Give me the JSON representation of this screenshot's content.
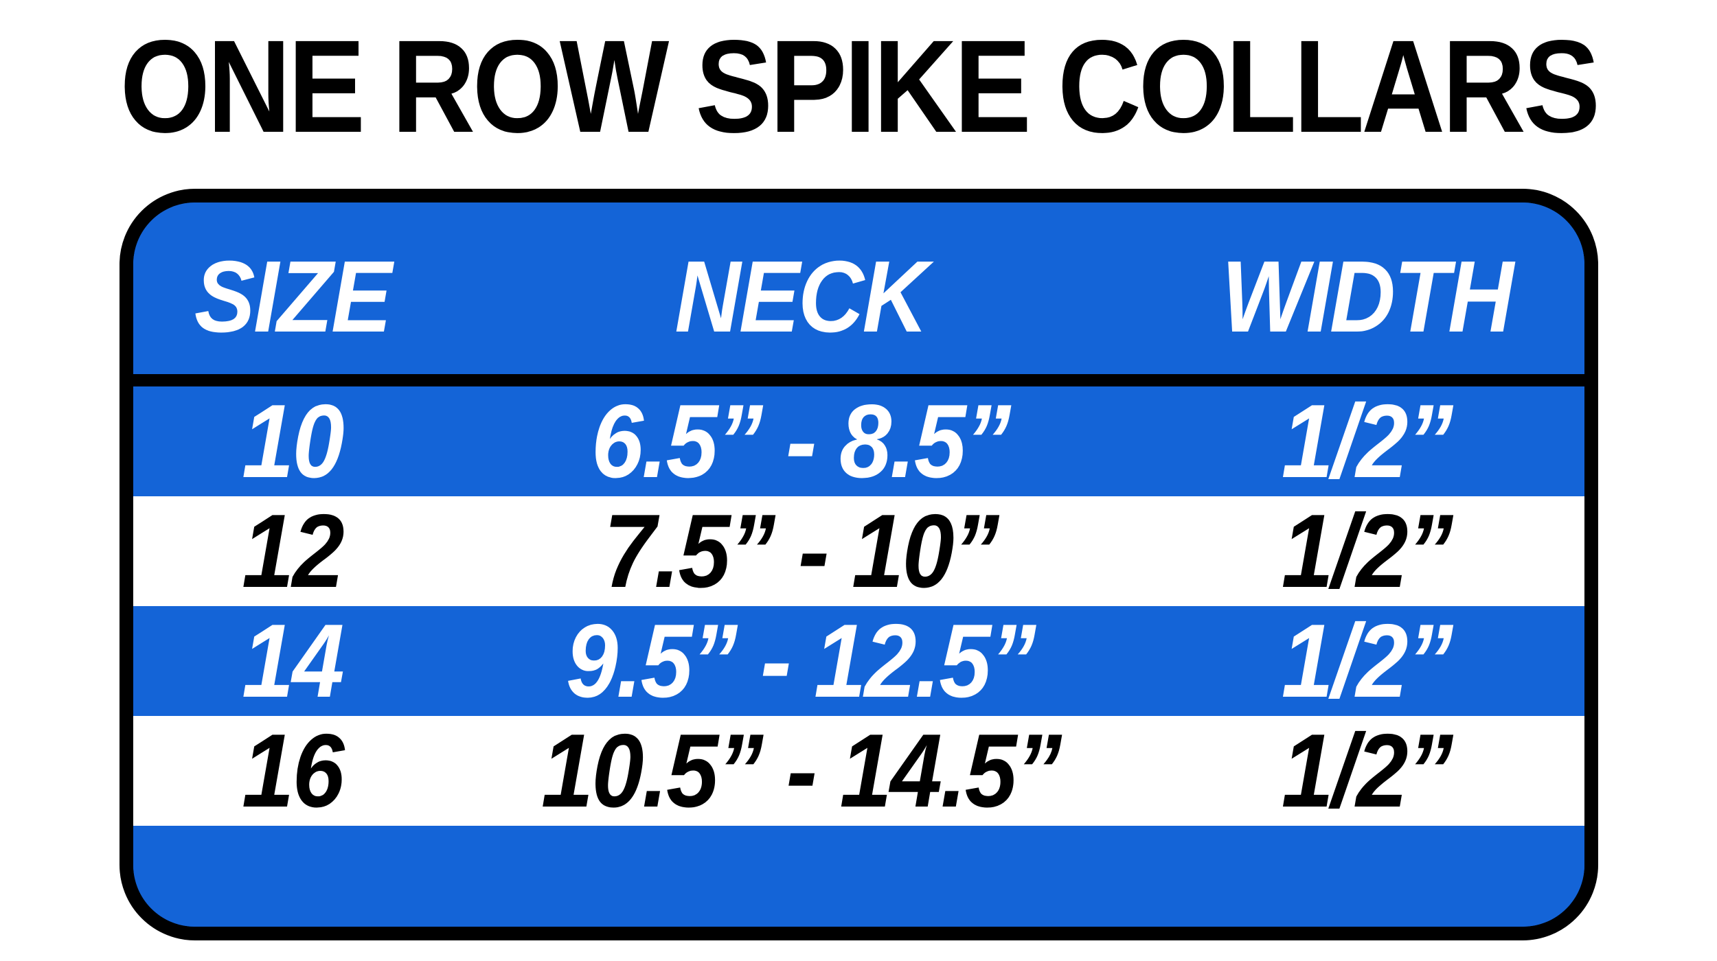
{
  "title": "ONE ROW SPIKE COLLARS",
  "colors": {
    "blue": "#1464d7",
    "ink": "#000000",
    "paper": "#ffffff",
    "text_on_blue": "#ffffff"
  },
  "table": {
    "columns": [
      "SIZE",
      "NECK",
      "WIDTH"
    ],
    "rows": [
      {
        "size": "10",
        "neck": "6.5” - 8.5”",
        "width": "1/2”"
      },
      {
        "size": "12",
        "neck": "7.5” - 10”",
        "width": "1/2”"
      },
      {
        "size": "14",
        "neck": "9.5” - 12.5”",
        "width": "1/2”"
      },
      {
        "size": "16",
        "neck": "10.5” - 14.5”",
        "width": "1/2”"
      }
    ]
  },
  "chart_data": {
    "type": "table",
    "title": "ONE ROW SPIKE COLLARS",
    "columns": [
      "SIZE",
      "NECK",
      "WIDTH"
    ],
    "rows": [
      [
        "10",
        "6.5” - 8.5”",
        "1/2”"
      ],
      [
        "12",
        "7.5” - 10”",
        "1/2”"
      ],
      [
        "14",
        "9.5” - 12.5”",
        "1/2”"
      ],
      [
        "16",
        "10.5” - 14.5”",
        "1/2”"
      ]
    ],
    "layout": {
      "header_bg": "#1464d7",
      "row_stripe_colors": [
        "#1464d7",
        "#ffffff"
      ],
      "border_color": "#000000",
      "grid": false
    }
  }
}
